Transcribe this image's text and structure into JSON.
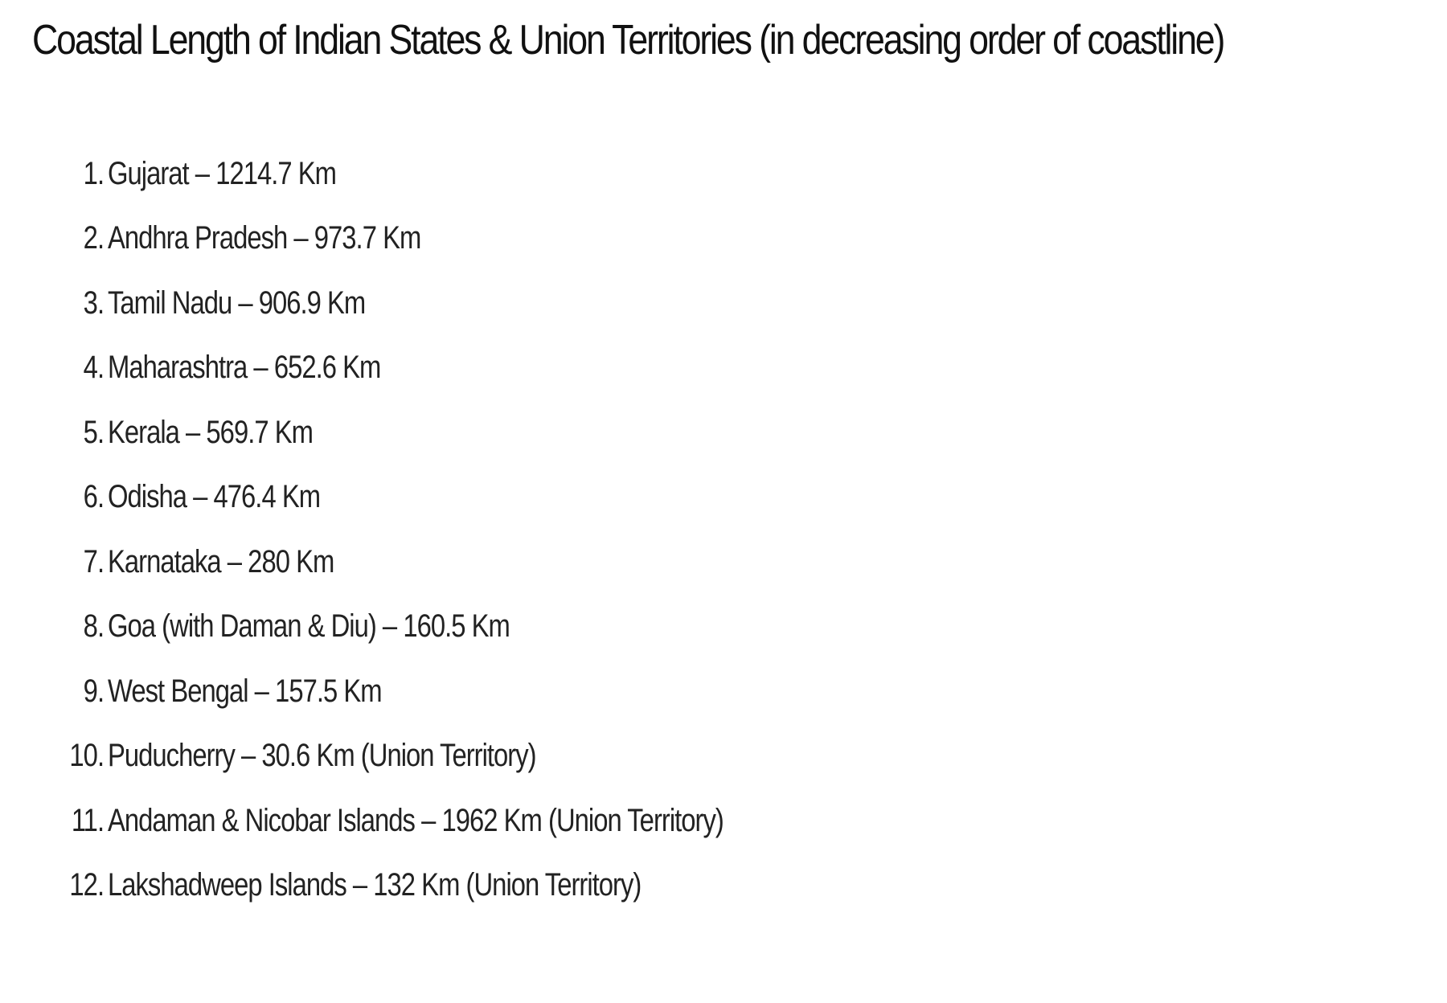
{
  "title": "Coastal Length of Indian States & Union Territories (in decreasing order of coastline)",
  "items": [
    {
      "number": "1.",
      "text": "Gujarat – 1214.7 Km"
    },
    {
      "number": "2.",
      "text": "Andhra Pradesh – 973.7 Km"
    },
    {
      "number": "3.",
      "text": "Tamil Nadu – 906.9 Km"
    },
    {
      "number": "4.",
      "text": "Maharashtra – 652.6 Km"
    },
    {
      "number": "5.",
      "text": "Kerala – 569.7 Km"
    },
    {
      "number": "6.",
      "text": "Odisha – 476.4 Km"
    },
    {
      "number": "7.",
      "text": "Karnataka – 280 Km"
    },
    {
      "number": "8.",
      "text": "Goa (with Daman & Diu) – 160.5 Km"
    },
    {
      "number": "9.",
      "text": "West Bengal – 157.5 Km"
    },
    {
      "number": "10.",
      "text": "Puducherry – 30.6 Km (Union Territory)"
    },
    {
      "number": "11.",
      "text": "Andaman & Nicobar Islands – 1962 Km (Union Territory)"
    },
    {
      "number": "12.",
      "text": "Lakshadweep Islands – 132 Km (Union Territory)"
    }
  ]
}
